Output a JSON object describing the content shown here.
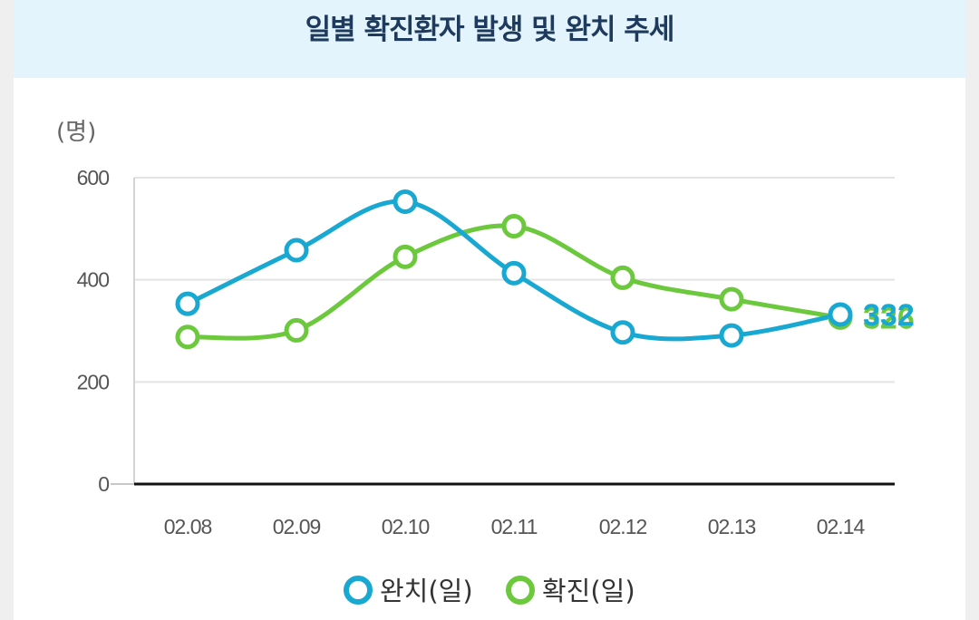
{
  "title": "일별 확진환자 발생 및 완치 추세",
  "chart_data": {
    "type": "line",
    "title": "일별 확진환자 발생 및 완치 추세",
    "ylabel": "(명)",
    "xlabel": "",
    "categories": [
      "02.08",
      "02.09",
      "02.10",
      "02.11",
      "02.12",
      "02.13",
      "02.14"
    ],
    "yticks": [
      0,
      200,
      400,
      600
    ],
    "ylim": [
      0,
      600
    ],
    "grid": true,
    "legend_position": "bottom",
    "series": [
      {
        "name": "완치(일)",
        "color": "#19a8d1",
        "values": [
          353,
          458,
          553,
          413,
          297,
          291,
          332
        ],
        "end_label": "332"
      },
      {
        "name": "확진(일)",
        "color": "#6cc83c",
        "values": [
          288,
          301,
          445,
          505,
          404,
          362,
          326
        ],
        "end_label": "326"
      }
    ]
  }
}
